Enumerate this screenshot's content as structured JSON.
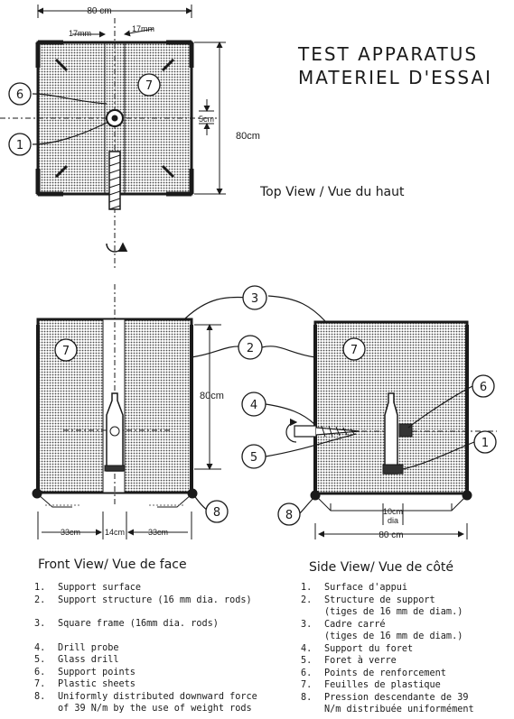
{
  "title": {
    "line1": "TEST APPARATUS",
    "line2": "MATERIEL D'ESSAI"
  },
  "views": {
    "top": "Top View / Vue du haut",
    "front": "Front View/ Vue de face",
    "side": "Side View/ Vue de côté"
  },
  "dims": {
    "width_80": "80 cm",
    "seventeen_a": "17mm",
    "seventeen_b": "17mm",
    "five_cm": "5cm",
    "height_80": "80cm",
    "front_height": "80cm",
    "front_33a": "33cm",
    "front_14": "14cm",
    "front_33b": "33cm",
    "side_10": "10cm",
    "side_dia": "dia",
    "side_width": "80 cm"
  },
  "callouts": {
    "c1": "1",
    "c2": "2",
    "c3": "3",
    "c4": "4",
    "c5": "5",
    "c6": "6",
    "c7": "7",
    "c8": "8"
  },
  "legend_en": [
    {
      "n": "1.",
      "t": "Support surface"
    },
    {
      "n": "2.",
      "t": "Support structure (16 mm dia. rods)"
    },
    {
      "n": "3.",
      "t": "Square frame (16mm dia. rods)"
    },
    {
      "n": "4.",
      "t": "Drill probe"
    },
    {
      "n": "5.",
      "t": "Glass drill"
    },
    {
      "n": "6.",
      "t": "Support points"
    },
    {
      "n": "7.",
      "t": "Plastic sheets"
    },
    {
      "n": "8.",
      "t": "Uniformly distributed downward force\nof 39 N/m by the use of weight rods"
    }
  ],
  "legend_fr": [
    {
      "n": "1.",
      "t": "Surface d'appui"
    },
    {
      "n": "2.",
      "t": "Structure de support\n(tiges de 16 mm de diam.)"
    },
    {
      "n": "3.",
      "t": "Cadre carré\n(tiges de 16 mm de diam.)"
    },
    {
      "n": "4.",
      "t": "Support du foret"
    },
    {
      "n": "5.",
      "t": "Foret à verre"
    },
    {
      "n": "6.",
      "t": "Points de renforcement"
    },
    {
      "n": "7.",
      "t": "Feuilles de plastique"
    },
    {
      "n": "8.",
      "t": "Pression descendante de 39\nN/m distribuée uniformément"
    }
  ]
}
